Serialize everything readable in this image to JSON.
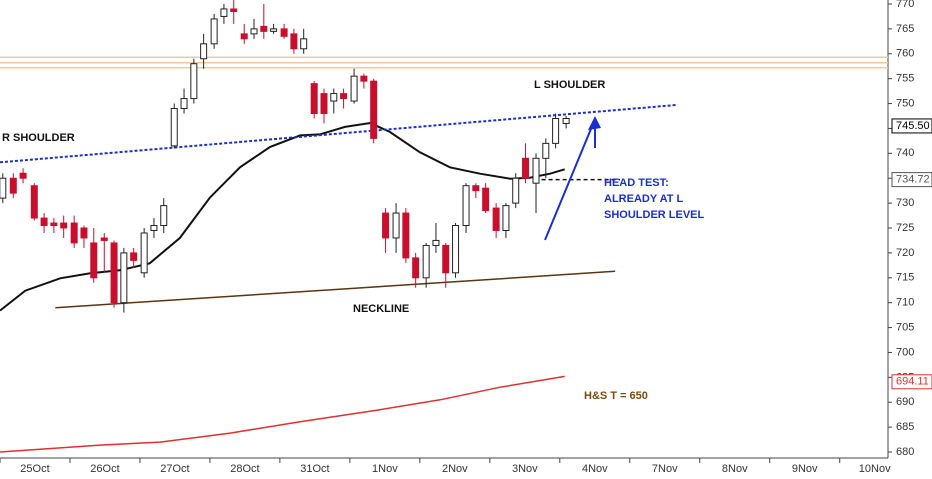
{
  "chart_data": {
    "type": "candlestick",
    "x": [
      -0.46,
      -0.31,
      -0.17,
      -0.01,
      0.13,
      0.27,
      0.41,
      0.56,
      0.7,
      0.84,
      0.99,
      1.13,
      1.27,
      1.41,
      1.56,
      1.7,
      1.84,
      1.99,
      2.13,
      2.27,
      2.41,
      2.56,
      2.7,
      2.84,
      2.99,
      3.13,
      3.27,
      3.41,
      3.56,
      3.7,
      3.84,
      3.99,
      4.13,
      4.27,
      4.41,
      4.56,
      4.7,
      4.84,
      5.01,
      5.16,
      5.3,
      5.44,
      5.59,
      5.73,
      5.87,
      6.01,
      6.16,
      6.3,
      6.44,
      6.59,
      6.73,
      6.87,
      7.01,
      7.16,
      7.3,
      7.44,
      7.59
    ],
    "open": [
      731,
      735,
      736,
      733.5,
      727,
      726,
      726,
      726,
      725,
      722,
      723,
      722,
      710,
      720,
      716,
      724.5,
      725.5,
      741.5,
      749,
      751,
      759,
      762,
      767.5,
      769,
      764,
      764,
      765.5,
      764.5,
      765,
      764,
      761,
      754,
      752,
      750.5,
      752,
      750.5,
      755.5,
      754.5,
      728,
      723,
      728,
      719,
      715,
      721.5,
      721.5,
      716,
      725.5,
      733.5,
      733,
      729,
      724.5,
      730,
      739,
      734,
      739,
      742,
      746
    ],
    "high": [
      736,
      736,
      737,
      734,
      728,
      727,
      727.5,
      727.5,
      725.5,
      725,
      724,
      722.5,
      721,
      721,
      725,
      727,
      731,
      750,
      753,
      759,
      764,
      768,
      770,
      771,
      766,
      767,
      770,
      766,
      766,
      765,
      765,
      754.5,
      753,
      753,
      753,
      757,
      756,
      755,
      729,
      730,
      729,
      720,
      722,
      726,
      722,
      726,
      734,
      734,
      734,
      730,
      730,
      736,
      742,
      740,
      743,
      748,
      747.5
    ],
    "low": [
      730,
      731,
      734,
      726.5,
      724,
      724,
      723,
      721,
      721,
      714,
      716,
      709,
      708,
      717,
      715,
      723,
      724,
      741,
      748,
      750,
      757,
      761,
      766,
      766,
      762,
      763,
      763,
      764,
      763,
      760,
      760,
      747,
      746,
      748,
      749,
      750,
      753,
      742,
      720,
      720,
      718,
      713,
      713,
      720,
      713,
      715,
      724,
      731,
      728,
      723,
      723,
      729,
      734,
      728,
      735,
      741,
      745
    ],
    "close": [
      735,
      732,
      735,
      727,
      725.5,
      725.5,
      725,
      722,
      723,
      715,
      722.5,
      710,
      720,
      718.5,
      724,
      725.5,
      729.5,
      749,
      751,
      758,
      762,
      767,
      769,
      768.5,
      763,
      765,
      764.5,
      765,
      763.5,
      761,
      763,
      748,
      748,
      752,
      751,
      755.5,
      754.5,
      743,
      723,
      728,
      719,
      715,
      721.5,
      722.5,
      716,
      725.5,
      733.5,
      732.5,
      728.5,
      724.5,
      729.5,
      735,
      735,
      739,
      742,
      747,
      747
    ],
    "up_color": "#ffffff",
    "down_color": "#c8102e",
    "xlim": [
      -0.5,
      12.19
    ],
    "xticks": [
      {
        "value": 0,
        "label": "25Oct"
      },
      {
        "value": 1,
        "label": "26Oct"
      },
      {
        "value": 2,
        "label": "27Oct"
      },
      {
        "value": 3,
        "label": "28Oct"
      },
      {
        "value": 4,
        "label": "31Oct"
      },
      {
        "value": 5,
        "label": "1Nov"
      },
      {
        "value": 6,
        "label": "2Nov"
      },
      {
        "value": 7,
        "label": "3Nov"
      },
      {
        "value": 8,
        "label": "4Nov"
      },
      {
        "value": 9,
        "label": "7Nov"
      },
      {
        "value": 10,
        "label": "8Nov"
      },
      {
        "value": 11,
        "label": "9Nov"
      },
      {
        "value": 12,
        "label": "10Nov"
      }
    ],
    "ylim": [
      678.8,
      770.8
    ],
    "yticks": [
      680,
      685,
      690,
      695,
      700,
      705,
      710,
      715,
      720,
      725,
      730,
      735,
      740,
      745,
      750,
      755,
      760,
      765,
      770
    ],
    "lines": [
      {
        "color": "#f0c8a0",
        "style": "solid",
        "x": [
          -0.5,
          12.19
        ],
        "values": [
          759.3,
          759.3
        ]
      },
      {
        "color": "#f0c8a0",
        "style": "solid",
        "x": [
          -0.5,
          12.19
        ],
        "values": [
          758.2,
          758.2
        ]
      },
      {
        "color": "#f0c8a0",
        "style": "solid",
        "x": [
          -0.5,
          12.19
        ],
        "values": [
          757.2,
          757.2
        ]
      },
      {
        "color": "#111111",
        "style": "solid",
        "x": [
          -0.5,
          -0.14,
          0.36,
          0.79,
          1.21,
          1.64,
          2.07,
          2.5,
          2.93,
          3.36,
          3.79,
          4.07,
          4.43,
          4.79,
          5.07,
          5.5,
          5.93,
          6.36,
          6.79,
          7.07,
          7.36,
          7.57
        ],
        "values": [
          708.4,
          712.4,
          714.9,
          715.9,
          716.5,
          717.9,
          723.0,
          731.1,
          737.2,
          741.3,
          743.6,
          743.8,
          745.3,
          746.1,
          744.3,
          740.2,
          737.2,
          735.9,
          734.9,
          735.1,
          735.9,
          736.8
        ]
      },
      {
        "color": "#e03030",
        "style": "solid",
        "x": [
          -0.5,
          0.93,
          1.79,
          2.79,
          3.79,
          4.93,
          5.79,
          6.64,
          7.57
        ],
        "values": [
          680.0,
          681.4,
          682.0,
          683.8,
          686.1,
          688.5,
          690.5,
          693.0,
          695.2
        ]
      },
      {
        "color": "#1a2fd0",
        "style": "dotted",
        "x": [
          -0.5,
          9.16
        ],
        "values": [
          738.2,
          749.7
        ]
      },
      {
        "color": "#5a3510",
        "style": "solid",
        "x": [
          0.29,
          8.29
        ],
        "values": [
          709.0,
          716.3
        ]
      },
      {
        "color": "#111111",
        "style": "dashed",
        "x": [
          7.14,
          8.36
        ],
        "values": [
          734.72,
          734.72
        ]
      }
    ],
    "price_labels": [
      {
        "value": 745.5,
        "label": "745.50",
        "color": "#000000"
      },
      {
        "value": 734.72,
        "label": "734.72",
        "color": "#555555"
      },
      {
        "value": 694.11,
        "label": "694.11",
        "color": "#e03030"
      }
    ],
    "annotations": [
      {
        "lines": [
          "R SHOULDER"
        ],
        "color": "#111111"
      },
      {
        "lines": [
          "L SHOULDER"
        ],
        "color": "#111111"
      },
      {
        "lines": [
          "NECKLINE"
        ],
        "color": "#111111"
      },
      {
        "lines": [
          "HEAD TEST:",
          "ALREADY AT L",
          "SHOULDER LEVEL"
        ],
        "color": "#1a2fd0"
      },
      {
        "lines": [
          "H&S T = 650"
        ],
        "color": "#7a4a10"
      }
    ]
  }
}
